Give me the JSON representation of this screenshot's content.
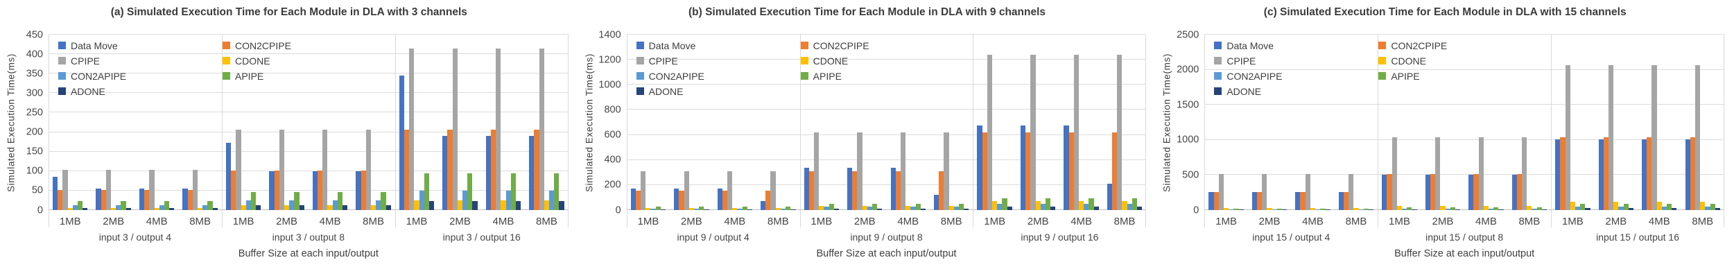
{
  "figure": {
    "background": "#ffffff"
  },
  "chart_data": [
    {
      "type": "bar",
      "title": "(a) Simulated Execution Time for Each Module in DLA with 3 channels",
      "xlabel": "Buffer Size at each input/output",
      "ylabel": "Simulated Execution Time(ms)",
      "ylim": [
        0,
        450
      ],
      "ystep": 50,
      "yticks": [
        "0",
        "50",
        "100",
        "150",
        "200",
        "250",
        "300",
        "350",
        "400",
        "450"
      ],
      "grid": true,
      "legend_position": "upper-left",
      "group_labels": [
        "input 3 / output 4",
        "input 3 / output 8",
        "input 3 / output 16"
      ],
      "categories": [
        "1MB",
        "2MB",
        "4MB",
        "8MB",
        "1MB",
        "2MB",
        "4MB",
        "8MB",
        "1MB",
        "2MB",
        "4MB",
        "8MB"
      ],
      "series": [
        {
          "name": "Data Move",
          "color": "#4472C4",
          "values": [
            85,
            55,
            55,
            55,
            173,
            99,
            99,
            99,
            345,
            190,
            190,
            190
          ]
        },
        {
          "name": "CON2CPIPE",
          "color": "#ED7D31",
          "values": [
            51,
            51,
            51,
            51,
            102,
            102,
            102,
            102,
            207,
            207,
            207,
            207
          ]
        },
        {
          "name": "CPIPE",
          "color": "#A5A5A5",
          "values": [
            103,
            103,
            103,
            103,
            207,
            207,
            207,
            207,
            414,
            414,
            414,
            414
          ]
        },
        {
          "name": "CDONE",
          "color": "#FFC000",
          "values": [
            6,
            6,
            6,
            6,
            12,
            12,
            12,
            12,
            25,
            25,
            25,
            25
          ]
        },
        {
          "name": "CON2APIPE",
          "color": "#5B9BD5",
          "values": [
            12,
            12,
            12,
            12,
            25,
            25,
            25,
            25,
            50,
            50,
            50,
            50
          ]
        },
        {
          "name": "APIPE",
          "color": "#70AD47",
          "values": [
            23,
            23,
            23,
            23,
            47,
            47,
            47,
            47,
            94,
            94,
            94,
            94
          ]
        },
        {
          "name": "ADONE",
          "color": "#264478",
          "values": [
            6,
            6,
            6,
            6,
            12,
            12,
            12,
            12,
            24,
            24,
            24,
            24
          ]
        }
      ]
    },
    {
      "type": "bar",
      "title": "(b) Simulated Execution Time for Each Module in DLA with 9 channels",
      "xlabel": "Buffer Size at each input/output",
      "ylabel": "Simulated Execution Time(ms)",
      "ylim": [
        0,
        1400
      ],
      "ystep": 200,
      "yticks": [
        "0",
        "200",
        "400",
        "600",
        "800",
        "1000",
        "1200",
        "1400"
      ],
      "grid": true,
      "legend_position": "upper-left",
      "group_labels": [
        "input 9 / output 4",
        "input 9 / output 8",
        "input 9 / output 16"
      ],
      "categories": [
        "1MB",
        "2MB",
        "4MB",
        "8MB",
        "1MB",
        "2MB",
        "4MB",
        "8MB",
        "1MB",
        "2MB",
        "4MB",
        "8MB"
      ],
      "series": [
        {
          "name": "Data Move",
          "color": "#4472C4",
          "values": [
            170,
            170,
            170,
            73,
            335,
            335,
            335,
            120,
            675,
            675,
            675,
            210
          ]
        },
        {
          "name": "CON2CPIPE",
          "color": "#ED7D31",
          "values": [
            155,
            155,
            155,
            155,
            310,
            310,
            310,
            310,
            620,
            620,
            620,
            620
          ]
        },
        {
          "name": "CPIPE",
          "color": "#A5A5A5",
          "values": [
            310,
            310,
            310,
            310,
            620,
            620,
            620,
            620,
            1240,
            1240,
            1240,
            1240
          ]
        },
        {
          "name": "CDONE",
          "color": "#FFC000",
          "values": [
            18,
            18,
            18,
            18,
            35,
            35,
            35,
            35,
            72,
            72,
            72,
            72
          ]
        },
        {
          "name": "CON2APIPE",
          "color": "#5B9BD5",
          "values": [
            12,
            12,
            12,
            12,
            25,
            25,
            25,
            25,
            50,
            50,
            50,
            50
          ]
        },
        {
          "name": "APIPE",
          "color": "#70AD47",
          "values": [
            27,
            27,
            27,
            27,
            48,
            48,
            48,
            48,
            95,
            95,
            95,
            95
          ]
        },
        {
          "name": "ADONE",
          "color": "#264478",
          "values": [
            8,
            8,
            8,
            8,
            12,
            12,
            12,
            12,
            25,
            25,
            25,
            25
          ]
        }
      ]
    },
    {
      "type": "bar",
      "title": "(c) Simulated Execution Time for Each Module in DLA with 15 channels",
      "xlabel": "Buffer Size at each input/output",
      "ylabel": "Simulated Execution Time(ms)",
      "ylim": [
        0,
        2500
      ],
      "ystep": 500,
      "yticks": [
        "0",
        "500",
        "1000",
        "1500",
        "2000",
        "2500"
      ],
      "grid": true,
      "legend_position": "upper-left",
      "group_labels": [
        "input 15 / output 4",
        "input 15 / output 8",
        "input 15 / output 16"
      ],
      "categories": [
        "1MB",
        "2MB",
        "4MB",
        "8MB",
        "1MB",
        "2MB",
        "4MB",
        "8MB",
        "1MB",
        "2MB",
        "4MB",
        "8MB"
      ],
      "series": [
        {
          "name": "Data Move",
          "color": "#4472C4",
          "values": [
            255,
            255,
            255,
            255,
            500,
            500,
            500,
            500,
            1010,
            1010,
            1010,
            1010
          ]
        },
        {
          "name": "CON2CPIPE",
          "color": "#ED7D31",
          "values": [
            262,
            262,
            262,
            262,
            512,
            512,
            512,
            512,
            1035,
            1035,
            1035,
            1035
          ]
        },
        {
          "name": "CPIPE",
          "color": "#A5A5A5",
          "values": [
            515,
            515,
            515,
            515,
            1035,
            1035,
            1035,
            1035,
            2070,
            2070,
            2070,
            2070
          ]
        },
        {
          "name": "CDONE",
          "color": "#FFC000",
          "values": [
            30,
            30,
            30,
            30,
            58,
            58,
            58,
            58,
            122,
            122,
            122,
            122
          ]
        },
        {
          "name": "CON2APIPE",
          "color": "#5B9BD5",
          "values": [
            10,
            10,
            10,
            10,
            22,
            22,
            22,
            22,
            50,
            50,
            50,
            50
          ]
        },
        {
          "name": "APIPE",
          "color": "#70AD47",
          "values": [
            20,
            20,
            20,
            20,
            40,
            40,
            40,
            40,
            92,
            92,
            92,
            92
          ]
        },
        {
          "name": "ADONE",
          "color": "#264478",
          "values": [
            7,
            7,
            7,
            7,
            14,
            14,
            14,
            14,
            26,
            26,
            26,
            26
          ]
        }
      ]
    }
  ]
}
